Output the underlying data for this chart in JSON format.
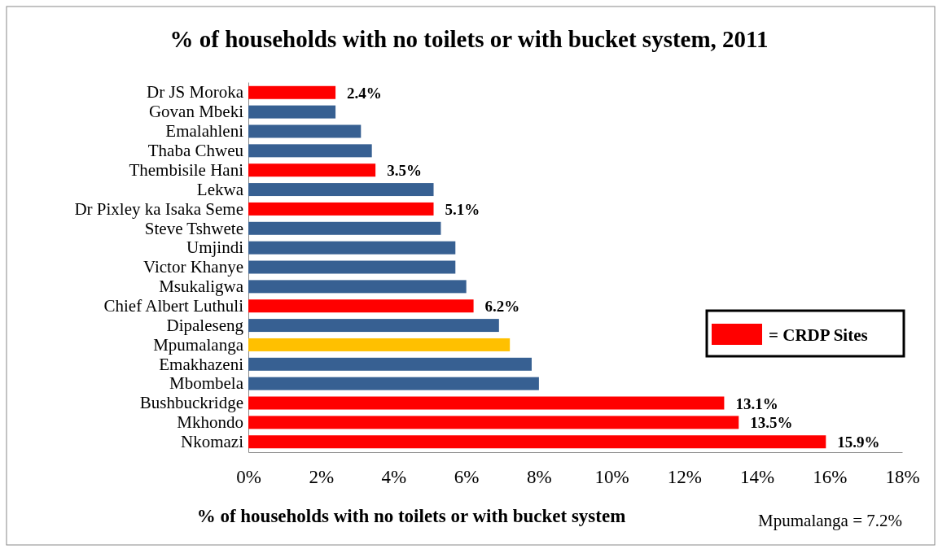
{
  "chart_data": {
    "type": "bar",
    "orientation": "horizontal",
    "stacked": true,
    "title": "% of households with no toilets or with bucket system, 2011",
    "xlabel": "% of households with no toilets or with bucket system",
    "categories": [
      "Dr JS Moroka",
      "Govan Mbeki",
      "Emalahleni",
      "Thaba Chweu",
      "Thembisile Hani",
      "Lekwa",
      "Dr Pixley ka Isaka Seme",
      "Steve Tshwete",
      "Umjindi",
      "Victor Khanye",
      "Msukaligwa",
      "Chief Albert Luthuli",
      "Dipaleseng",
      "Mpumalanga",
      "Emakhazeni",
      "Mbombela",
      "Bushbuckridge",
      "Mkhondo",
      "Nkomazi"
    ],
    "series": [
      {
        "name": "= CRDP Sites",
        "color": "#ff0000",
        "values": [
          2.4,
          null,
          null,
          null,
          3.5,
          null,
          5.1,
          null,
          null,
          null,
          null,
          6.2,
          null,
          null,
          null,
          null,
          13.1,
          13.5,
          15.9
        ],
        "value_labels": [
          "2.4%",
          null,
          null,
          null,
          "3.5%",
          null,
          "5.1%",
          null,
          null,
          null,
          null,
          "6.2%",
          null,
          null,
          null,
          null,
          "13.1%",
          "13.5%",
          "15.9%"
        ]
      },
      {
        "color": "#376092",
        "values": [
          null,
          2.4,
          3.1,
          3.4,
          null,
          5.1,
          null,
          5.3,
          5.7,
          5.7,
          6.0,
          null,
          6.9,
          null,
          7.8,
          8.0,
          null,
          null,
          null
        ]
      },
      {
        "color": "#ffc000",
        "values": [
          null,
          null,
          null,
          null,
          null,
          null,
          null,
          null,
          null,
          null,
          null,
          null,
          null,
          7.2,
          null,
          null,
          null,
          null,
          null
        ]
      }
    ],
    "xlim": [
      0,
      18
    ],
    "xticks": [
      {
        "value": 0,
        "label": "0%"
      },
      {
        "value": 2,
        "label": "2%"
      },
      {
        "value": 4,
        "label": "4%"
      },
      {
        "value": 6,
        "label": "6%"
      },
      {
        "value": 8,
        "label": "8%"
      },
      {
        "value": 10,
        "label": "10%"
      },
      {
        "value": 12,
        "label": "12%"
      },
      {
        "value": 14,
        "label": "14%"
      },
      {
        "value": 16,
        "label": "16%"
      },
      {
        "value": 18,
        "label": "18%"
      }
    ],
    "legend": "right",
    "grid": false,
    "annotations": [
      "Mpumalanga = 7.2%"
    ]
  }
}
